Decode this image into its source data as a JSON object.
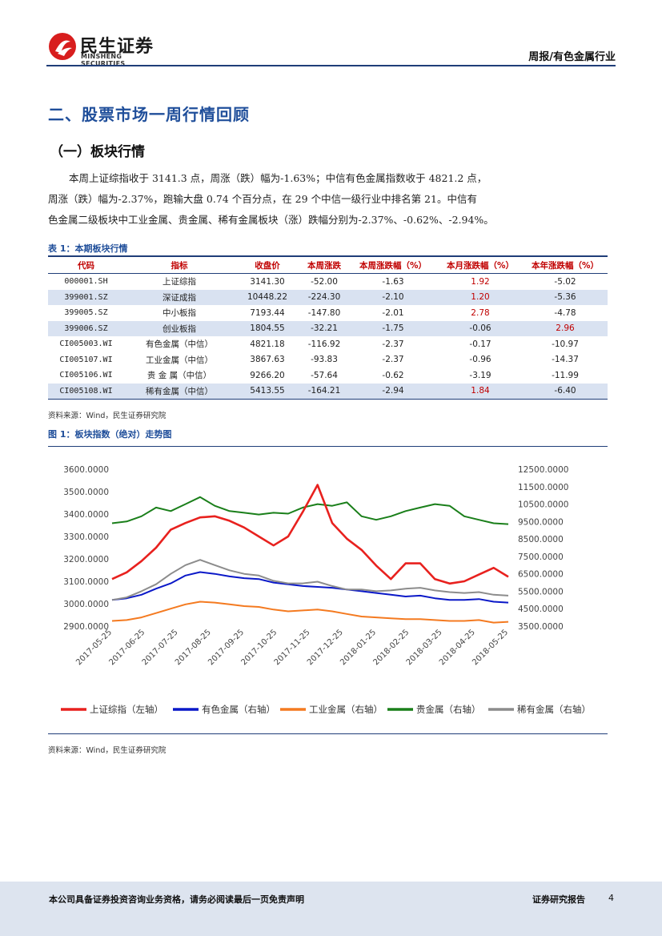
{
  "header": {
    "logo_cn": "民生证券",
    "logo_en": "MINSHENG SECURITIES",
    "report_type": "周报/有色金属行业"
  },
  "section_title": "二、股票市场一周行情回顾",
  "subsection_title": "（一）板块行情",
  "paragraph": [
    "本周上证综指收于 3141.3 点，周涨（跌）幅为-1.63%；中信有色金属指数收于 4821.2 点，",
    "周涨（跌）幅为-2.37%，跑输大盘 0.74 个百分点，在 29 个中信一级行业中排名第 21。中信有",
    "色金属二级板块中工业金属、贵金属、稀有金属板块（涨）跌幅分别为-2.37%、-0.62%、-2.94%。"
  ],
  "table": {
    "caption": "表 1：本期板块行情",
    "headers": [
      "代码",
      "指标",
      "收盘价",
      "本周涨跌",
      "本周涨跌幅（%）",
      "本月涨跌幅（%）",
      "本年涨跌幅（%）"
    ],
    "rows": [
      [
        "000001.SH",
        "上证综指",
        "3141.30",
        "-52.00",
        "-1.63",
        "1.92",
        "-5.02"
      ],
      [
        "399001.SZ",
        "深证成指",
        "10448.22",
        "-224.30",
        "-2.10",
        "1.20",
        "-5.36"
      ],
      [
        "399005.SZ",
        "中小板指",
        "7193.44",
        "-147.80",
        "-2.01",
        "2.78",
        "-4.78"
      ],
      [
        "399006.SZ",
        "创业板指",
        "1804.55",
        "-32.21",
        "-1.75",
        "-0.06",
        "2.96"
      ],
      [
        "CI005003.WI",
        "有色金属（中信）",
        "4821.18",
        "-116.92",
        "-2.37",
        "-0.17",
        "-10.97"
      ],
      [
        "CI005107.WI",
        "工业金属（中信）",
        "3867.63",
        "-93.83",
        "-2.37",
        "-0.96",
        "-14.37"
      ],
      [
        "CI005106.WI",
        "贵 金 属（中信）",
        "9266.20",
        "-57.64",
        "-0.62",
        "-3.19",
        "-11.99"
      ],
      [
        "CI005108.WI",
        "稀有金属（中信）",
        "5413.55",
        "-164.21",
        "-2.94",
        "1.84",
        "-6.40"
      ]
    ],
    "source": "资料来源：Wind，民生证券研究院"
  },
  "figure": {
    "caption": "图 1：板块指数（绝对）走势图",
    "source": "资料来源：Wind，民生证券研究院"
  },
  "chart_data": {
    "type": "line",
    "title": "",
    "x_labels": [
      "2017-05-25",
      "2017-06-25",
      "2017-07-25",
      "2017-08-25",
      "2017-09-25",
      "2017-10-25",
      "2017-11-25",
      "2017-12-25",
      "2018-01-25",
      "2018-02-25",
      "2018-03-25",
      "2018-04-25",
      "2018-05-25"
    ],
    "y_left": {
      "ticks": [
        "3600.0000",
        "3500.0000",
        "3400.0000",
        "3300.0000",
        "3200.0000",
        "3100.0000",
        "3000.0000",
        "2900.0000"
      ],
      "range": [
        2900,
        3600
      ]
    },
    "y_right": {
      "ticks": [
        "12500.0000",
        "11500.0000",
        "10500.0000",
        "9500.0000",
        "8500.0000",
        "7500.0000",
        "6500.0000",
        "5500.0000",
        "4500.0000",
        "3500.0000"
      ],
      "range": [
        3500,
        12500
      ]
    },
    "series": [
      {
        "name": "上证综指（左轴）",
        "axis": "left",
        "color": "#e8211e",
        "values": [
          3110,
          3140,
          3190,
          3250,
          3330,
          3360,
          3385,
          3390,
          3370,
          3340,
          3300,
          3260,
          3300,
          3410,
          3530,
          3360,
          3290,
          3240,
          3170,
          3110,
          3180,
          3180,
          3110,
          3090,
          3100,
          3130,
          3160,
          3120
        ]
      },
      {
        "name": "有色金属（右轴）",
        "axis": "right",
        "color": "#0a18c8",
        "values": [
          5000,
          5100,
          5300,
          5650,
          5950,
          6400,
          6600,
          6500,
          6350,
          6250,
          6200,
          6000,
          5900,
          5800,
          5750,
          5700,
          5600,
          5500,
          5400,
          5300,
          5200,
          5250,
          5100,
          5000,
          5000,
          5050,
          4900,
          4850
        ]
      },
      {
        "name": "工业金属（右轴）",
        "axis": "right",
        "color": "#f47a20",
        "values": [
          3800,
          3850,
          4000,
          4250,
          4500,
          4750,
          4900,
          4850,
          4750,
          4650,
          4600,
          4450,
          4350,
          4400,
          4450,
          4350,
          4200,
          4050,
          4000,
          3950,
          3900,
          3900,
          3850,
          3800,
          3800,
          3850,
          3700,
          3750
        ]
      },
      {
        "name": "贵金属（右轴）",
        "axis": "right",
        "color": "#1a7f1a",
        "values": [
          9400,
          9500,
          9800,
          10300,
          10100,
          10500,
          10900,
          10400,
          10100,
          10000,
          9900,
          10000,
          9950,
          10300,
          10500,
          10400,
          10600,
          9800,
          9600,
          9800,
          10100,
          10300,
          10500,
          10400,
          9800,
          9600,
          9400,
          9350
        ]
      },
      {
        "name": "稀有金属（右轴）",
        "axis": "right",
        "color": "#8c8c8c",
        "values": [
          5000,
          5150,
          5500,
          5900,
          6500,
          7000,
          7300,
          7000,
          6700,
          6500,
          6400,
          6100,
          5950,
          5950,
          6050,
          5800,
          5600,
          5600,
          5500,
          5550,
          5650,
          5700,
          5550,
          5450,
          5400,
          5450,
          5300,
          5250
        ]
      }
    ]
  },
  "footer": {
    "disclaimer": "本公司具备证券投资咨询业务资格，请务必阅读最后一页免责声明",
    "report_label": "证券研究报告",
    "page": "4"
  }
}
